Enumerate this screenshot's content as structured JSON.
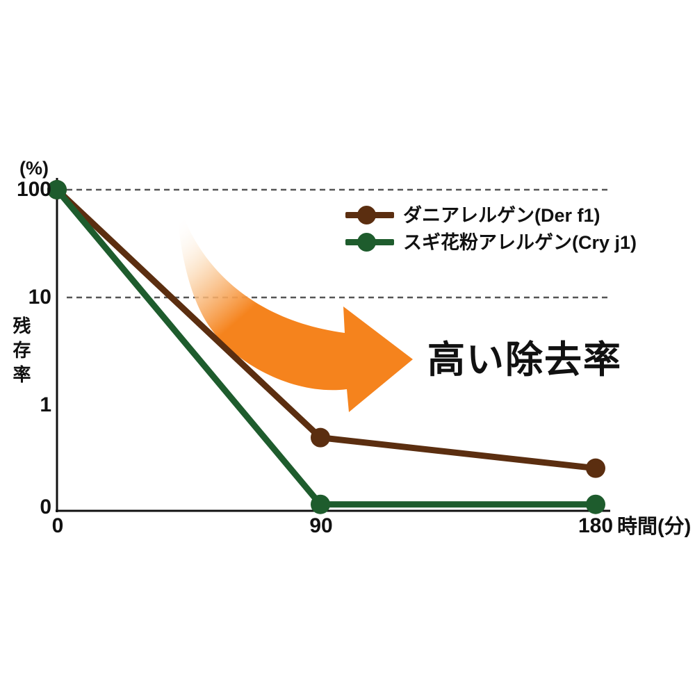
{
  "chart_data": {
    "type": "line",
    "title": "",
    "y_axis": {
      "unit_label": "(%)",
      "title": "残存率",
      "scale": "log",
      "ticks": [
        "100",
        "10",
        "1",
        "0"
      ]
    },
    "x_axis": {
      "title": "時間(分)",
      "ticks": [
        "0",
        "90",
        "180"
      ]
    },
    "series": [
      {
        "name": "ダニアレルゲン(Der f1)",
        "color": "#5B2E10",
        "x_minutes": [
          0,
          90,
          180
        ],
        "residual_percent": [
          100,
          0.5,
          0.26
        ]
      },
      {
        "name": "スギ花粉アレルゲン(Cry j1)",
        "color": "#1E5C2D",
        "x_minutes": [
          0,
          90,
          180
        ],
        "residual_percent": [
          100,
          0.12,
          0.12
        ]
      }
    ],
    "gridlines": {
      "style": "dashed",
      "at_percent": [
        100,
        10
      ],
      "color": "#555555"
    },
    "annotation": {
      "label": "高い除去率",
      "arrow_color": "#F5831D"
    },
    "axis_color": "#111111"
  }
}
